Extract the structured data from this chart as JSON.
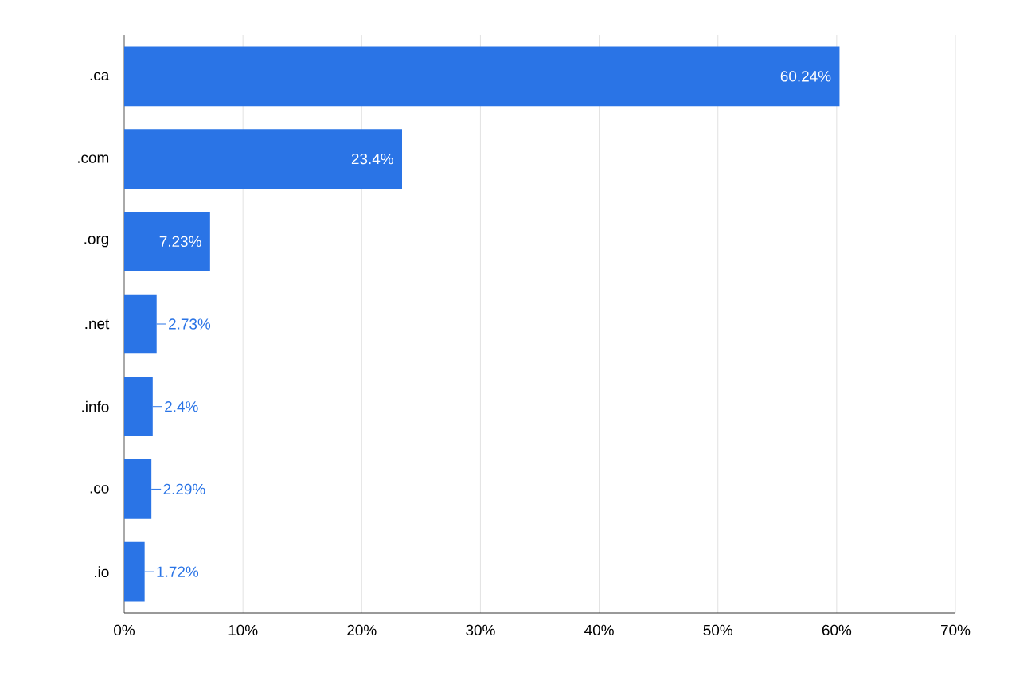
{
  "chart_data": {
    "type": "bar",
    "orientation": "horizontal",
    "categories": [
      ".ca",
      ".com",
      ".org",
      ".net",
      ".info",
      ".co",
      ".io"
    ],
    "values": [
      60.24,
      23.4,
      7.23,
      2.73,
      2.4,
      2.29,
      1.72
    ],
    "value_labels": [
      "60.24%",
      "23.4%",
      "7.23%",
      "2.73%",
      "2.4%",
      "2.29%",
      "1.72%"
    ],
    "color": "#2a74e6",
    "xlim": [
      0,
      70
    ],
    "xticks": [
      {
        "value": 0,
        "label": "0%"
      },
      {
        "value": 10,
        "label": "10%"
      },
      {
        "value": 20,
        "label": "20%"
      },
      {
        "value": 30,
        "label": "30%"
      },
      {
        "value": 40,
        "label": "40%"
      },
      {
        "value": 50,
        "label": "50%"
      },
      {
        "value": 60,
        "label": "60%"
      },
      {
        "value": 70,
        "label": "70%"
      }
    ],
    "grid": "x"
  }
}
